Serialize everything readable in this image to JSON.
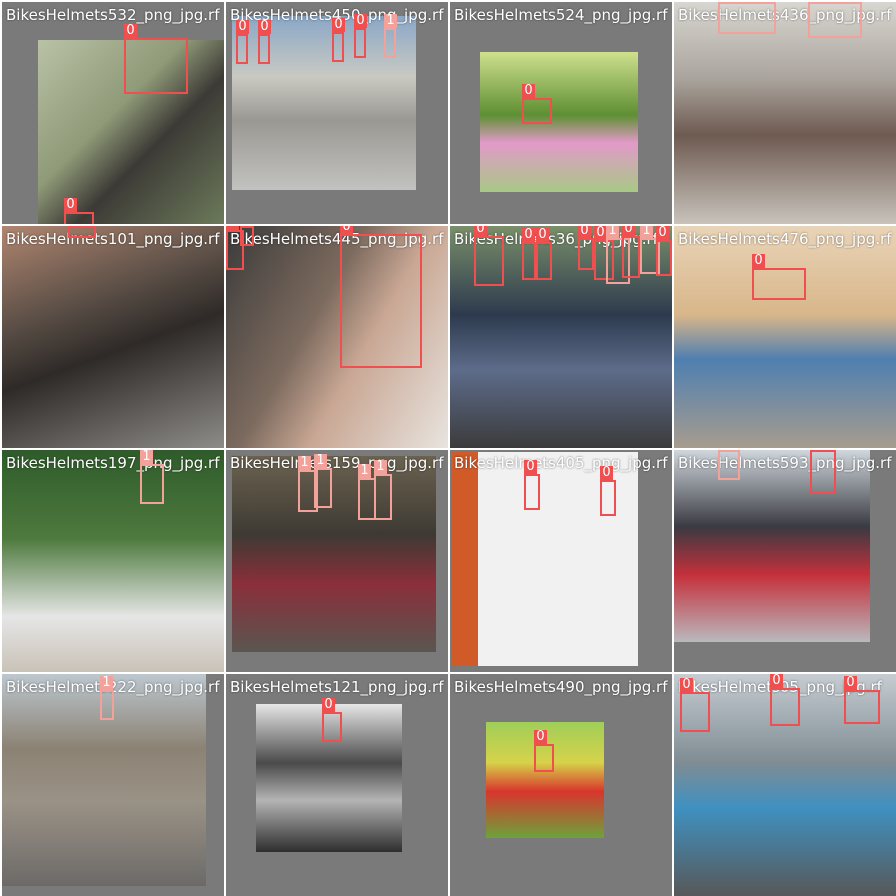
{
  "colors": {
    "class_0": "#ef4f4f",
    "class_1": "#f3a19b",
    "tile_background": "#7a7a7a"
  },
  "tiles": [
    {
      "caption": "BikesHelmets532_png_jpg.rf",
      "labels": [
        "0",
        "0"
      ]
    },
    {
      "caption": "BikesHelmets450_png_jpg.rf",
      "labels": [
        "0",
        "0",
        "0",
        "0",
        "1"
      ]
    },
    {
      "caption": "BikesHelmets524_png_jpg.rf",
      "labels": [
        "0"
      ]
    },
    {
      "caption": "BikesHelmets436_png_jpg.rf",
      "labels": [
        "1",
        "1"
      ]
    },
    {
      "caption": "BikesHelmets101_png_jpg.rf",
      "labels": [
        "0"
      ]
    },
    {
      "caption": "BikesHelmets445_png_jpg.rf",
      "labels": [
        "0",
        "0",
        "0"
      ]
    },
    {
      "caption": "BikesHelmets36_png_jpg.rf",
      "labels": [
        "0",
        "0",
        "0",
        "0",
        "0",
        "1",
        "0",
        "1",
        "0"
      ]
    },
    {
      "caption": "BikesHelmets476_png_jpg.rf",
      "labels": [
        "0"
      ]
    },
    {
      "caption": "BikesHelmets197_png_jpg.rf",
      "labels": [
        "1"
      ]
    },
    {
      "caption": "BikesHelmets159_png_jpg.rf",
      "labels": [
        "1",
        "1",
        "1",
        "1"
      ]
    },
    {
      "caption": "BikesHelmets405_png_jpg.rf",
      "labels": [
        "0",
        "0"
      ]
    },
    {
      "caption": "BikesHelmets593_png_jpg.rf",
      "labels": [
        "1",
        "0"
      ]
    },
    {
      "caption": "BikesHelmets222_png_jpg.rf",
      "labels": [
        "1"
      ]
    },
    {
      "caption": "BikesHelmets121_png_jpg.rf",
      "labels": [
        "0"
      ]
    },
    {
      "caption": "BikesHelmets490_png_jpg.rf",
      "labels": [
        "0"
      ]
    },
    {
      "caption": "BikesHelmets05_png_jpg.rf",
      "labels": [
        "0",
        "0",
        "0"
      ]
    }
  ]
}
